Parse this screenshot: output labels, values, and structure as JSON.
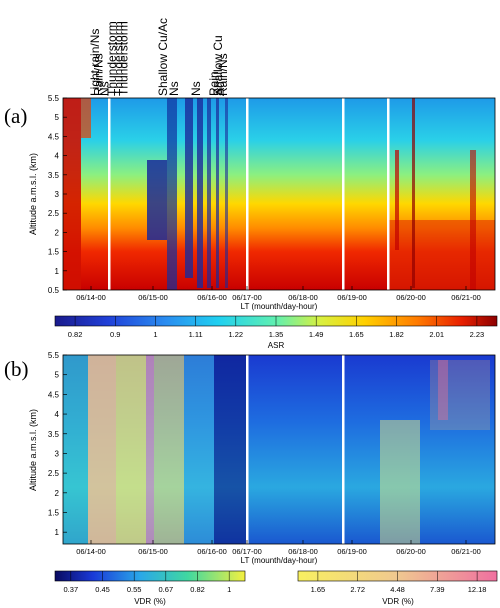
{
  "events": [
    {
      "label": "Light rain/Ns",
      "x": 0.065
    },
    {
      "label": "Rain/Ns",
      "x": 0.12
    },
    {
      "label": "Ns",
      "x": 0.215
    },
    {
      "label": "Thunderstorm",
      "x": 0.335
    },
    {
      "label": "Thunderstorm",
      "x": 0.44
    },
    {
      "label": "Thunderstorm",
      "x": 0.525
    },
    {
      "label": "Shallow Cu/Ac",
      "x": 1.17
    },
    {
      "label": "Ns",
      "x": 1.36
    },
    {
      "label": "Ns",
      "x": 1.73
    },
    {
      "label": "Rain",
      "x": 2.06
    },
    {
      "label": "Shallow Cu",
      "x": 2.17
    },
    {
      "label": "Ac",
      "x": 2.23
    },
    {
      "label": "Rain/Ns",
      "x": 2.31
    }
  ],
  "chart_data": [
    {
      "panel": "(a)",
      "type": "heatmap",
      "ylabel": "Altitude a.m.s.l. (km)",
      "xlabel": "LT (mounth/day-hour)",
      "x_tick_labels": [
        "06/14-00",
        "06/15-00",
        "06/16-00",
        "06/17-00",
        "06/18-00",
        "06/19-00",
        "06/20-00",
        "06/21-00"
      ],
      "y_ticks": [
        "0.5",
        "1",
        "1.5",
        "2",
        "2.5",
        "3",
        "3.5",
        "4",
        "4.5",
        "5",
        "5.5"
      ],
      "ylim": [
        0.5,
        5.5
      ],
      "colorbar": {
        "label": "ASR",
        "ticks": [
          "0.82",
          "0.9",
          "1",
          "1.11",
          "1.22",
          "1.35",
          "1.49",
          "1.65",
          "1.82",
          "2.01",
          "2.23"
        ]
      }
    },
    {
      "panel": "(b)",
      "type": "heatmap",
      "ylabel": "Altitude a.m.s.l. (km)",
      "xlabel": "LT (mounth/day-hour)",
      "x_tick_labels": [
        "06/14-00",
        "06/15-00",
        "06/16-00",
        "06/17-00",
        "06/18-00",
        "06/19-00",
        "06/20-00",
        "06/21-00"
      ],
      "y_ticks": [
        "1",
        "1.5",
        "2",
        "2.5",
        "3",
        "3.5",
        "4",
        "4.5",
        "5",
        "5.5"
      ],
      "ylim": [
        0.7,
        5.5
      ],
      "colorbar_low": {
        "label": "VDR (%)",
        "ticks": [
          "0.37",
          "0.45",
          "0.55",
          "0.67",
          "0.82",
          "1"
        ]
      },
      "colorbar_high": {
        "label": "VDR (%)",
        "ticks": [
          "1.65",
          "2.72",
          "4.48",
          "7.39",
          "12.18"
        ]
      }
    }
  ]
}
